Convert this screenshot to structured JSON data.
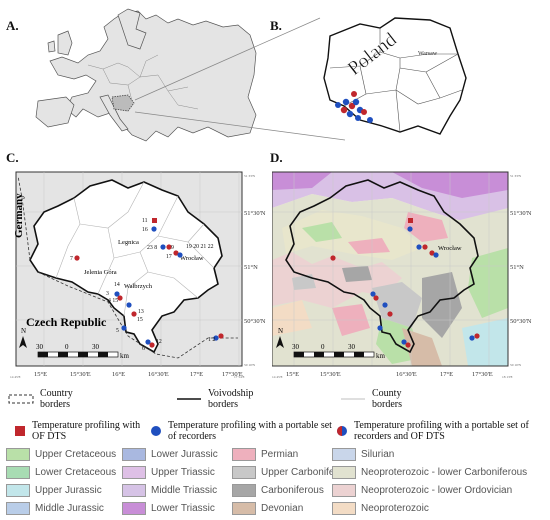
{
  "panels": {
    "a": "A.",
    "b": "B.",
    "c": "C.",
    "d": "D."
  },
  "panel_b": {
    "country": "Poland",
    "capital": "Warsaw"
  },
  "panel_c": {
    "countries": {
      "germany": "Germany",
      "czech": "Czech Republic"
    },
    "cities": {
      "legnica": "Legnica",
      "wroclaw": "Wrocław",
      "jelenia": "Jelenia Góra",
      "walbrzych": "Wałbrzych"
    },
    "site_numbers": [
      "1",
      "2",
      "3",
      "4",
      "5",
      "6",
      "7",
      "8",
      "9",
      "10",
      "11",
      "12",
      "13",
      "14",
      "15",
      "16",
      "17",
      "18",
      "19",
      "20",
      "21",
      "22",
      "23"
    ],
    "number_groups": {
      "g_19_22": "19 20 21 22",
      "g_4_15": "4 15",
      "g_23_8": "23 8",
      "g_1_2": "1  2"
    },
    "scale": {
      "left": "30",
      "mid": "0",
      "right": "30",
      "unit": "km"
    },
    "north": "N",
    "lat_labels": [
      "51°30'N",
      "51°N",
      "50°30'N"
    ],
    "lon_labels": [
      "15°E",
      "15°30'E",
      "16°E",
      "16°30'E",
      "17°E",
      "17°30'E"
    ],
    "corner_labels": {
      "top_left": "51 33'N",
      "bottom_left": "14 45'E",
      "bottom_right": "17 54'E",
      "top_right": "51 33'N",
      "br_lat": "50 10'N"
    }
  },
  "panel_d": {
    "city": "Wrocław",
    "lat_labels": [
      "51°30'N",
      "51°N",
      "50°30'N"
    ],
    "lon_labels": [
      "15°E",
      "15°30'E",
      "16°30'E",
      "17°E",
      "17°30'E"
    ],
    "corner_labels": {
      "bottom_left": "14 45'E",
      "bottom_right": "18 13'E",
      "top_right": "51 33'N",
      "br_lat": "50 10'N"
    },
    "scale": {
      "left": "30",
      "mid": "0",
      "right": "30",
      "unit": "km"
    },
    "north": "N"
  },
  "legend_borders": [
    {
      "label": "Country borders",
      "style": "dashed"
    },
    {
      "label": "Voivodship borders",
      "style": "solid"
    },
    {
      "label": "County borders",
      "style": "thin"
    }
  ],
  "legend_symbols": [
    {
      "label": "Temperature profiling with OF DTS",
      "symbol": "red-square"
    },
    {
      "label": "Temperature profiling with a portable set of recorders",
      "symbol": "blue-circle"
    },
    {
      "label": "Temperature profiling with a portable set of recorders and OF DTS",
      "symbol": "red-blue-circle"
    }
  ],
  "geology": [
    {
      "label": "Upper Cretaceous",
      "color": "#b9e0a8"
    },
    {
      "label": "Lower Jurassic",
      "color": "#a9b8e0"
    },
    {
      "label": "Permian",
      "color": "#eeb0bd"
    },
    {
      "label": "Silurian",
      "color": "#c9d6ea"
    },
    {
      "label": "Lower Cretaceous",
      "color": "#a8dcb3"
    },
    {
      "label": "Upper Triassic",
      "color": "#dec0e6"
    },
    {
      "label": "Upper Carboniferous",
      "color": "#c8c8c8"
    },
    {
      "label": "Neoproterozoic - lower Carboniferous",
      "color": "#e1e2d0"
    },
    {
      "label": "Upper Jurassic",
      "color": "#c2e6ea"
    },
    {
      "label": "Middle Triassic",
      "color": "#d6c3e6"
    },
    {
      "label": "Carboniferous",
      "color": "#a6a6a6"
    },
    {
      "label": "Neoproterozoic - lower Ordovician",
      "color": "#ecd2d2"
    },
    {
      "label": "Middle Jurassic",
      "color": "#b9cde8"
    },
    {
      "label": "Lower Triassic",
      "color": "#c88ed7"
    },
    {
      "label": "Devonian",
      "color": "#d6bca8"
    },
    {
      "label": "Neoproterozoic",
      "color": "#f3dcc5"
    }
  ]
}
